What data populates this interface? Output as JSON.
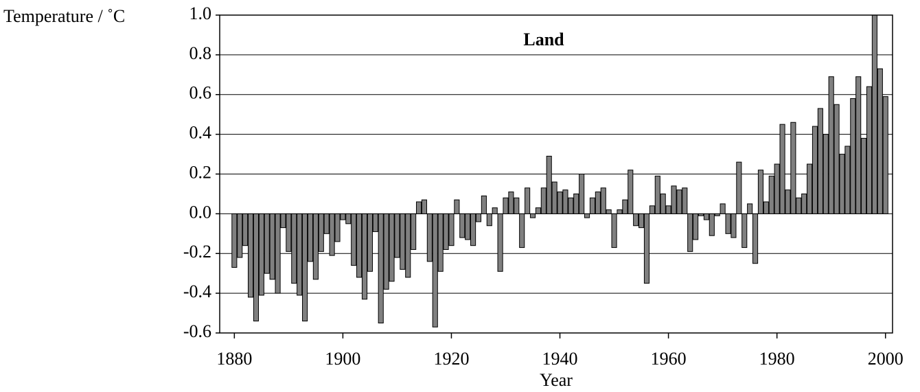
{
  "chart_data": {
    "type": "bar",
    "title": "Land",
    "y_label": "Temperature / ˚C",
    "x_label": "Year",
    "x": [
      1880,
      1881,
      1882,
      1883,
      1884,
      1885,
      1886,
      1887,
      1888,
      1889,
      1890,
      1891,
      1892,
      1893,
      1894,
      1895,
      1896,
      1897,
      1898,
      1899,
      1900,
      1901,
      1902,
      1903,
      1904,
      1905,
      1906,
      1907,
      1908,
      1909,
      1910,
      1911,
      1912,
      1913,
      1914,
      1915,
      1916,
      1917,
      1918,
      1919,
      1920,
      1921,
      1922,
      1923,
      1924,
      1925,
      1926,
      1927,
      1928,
      1929,
      1930,
      1931,
      1932,
      1933,
      1934,
      1935,
      1936,
      1937,
      1938,
      1939,
      1940,
      1941,
      1942,
      1943,
      1944,
      1945,
      1946,
      1947,
      1948,
      1949,
      1950,
      1951,
      1952,
      1953,
      1954,
      1955,
      1956,
      1957,
      1958,
      1959,
      1960,
      1961,
      1962,
      1963,
      1964,
      1965,
      1966,
      1967,
      1968,
      1969,
      1970,
      1971,
      1972,
      1973,
      1974,
      1975,
      1976,
      1977,
      1978,
      1979,
      1980,
      1981,
      1982,
      1983,
      1984,
      1985,
      1986,
      1987,
      1988,
      1989,
      1990,
      1991,
      1992,
      1993,
      1994,
      1995,
      1996,
      1997,
      1998,
      1999,
      2000
    ],
    "values": [
      -0.27,
      -0.22,
      -0.16,
      -0.42,
      -0.54,
      -0.41,
      -0.3,
      -0.33,
      -0.4,
      -0.07,
      -0.19,
      -0.35,
      -0.41,
      -0.54,
      -0.24,
      -0.33,
      -0.19,
      -0.1,
      -0.21,
      -0.14,
      -0.03,
      -0.05,
      -0.26,
      -0.32,
      -0.43,
      -0.29,
      -0.09,
      -0.55,
      -0.38,
      -0.34,
      -0.22,
      -0.28,
      -0.32,
      -0.18,
      0.06,
      0.07,
      -0.24,
      -0.57,
      -0.29,
      -0.18,
      -0.16,
      0.07,
      -0.12,
      -0.13,
      -0.16,
      -0.04,
      0.09,
      -0.06,
      0.03,
      -0.29,
      0.08,
      0.11,
      0.08,
      -0.17,
      0.13,
      -0.02,
      0.03,
      0.13,
      0.29,
      0.16,
      0.11,
      0.12,
      0.08,
      0.1,
      0.2,
      -0.02,
      0.08,
      0.11,
      0.13,
      0.02,
      -0.17,
      0.02,
      0.07,
      0.22,
      -0.06,
      -0.07,
      -0.35,
      0.04,
      0.19,
      0.1,
      0.04,
      0.14,
      0.12,
      0.13,
      -0.19,
      -0.13,
      -0.01,
      -0.03,
      -0.11,
      -0.01,
      0.05,
      -0.1,
      -0.12,
      0.26,
      -0.17,
      0.05,
      -0.25,
      0.22,
      0.06,
      0.19,
      0.25,
      0.45,
      0.12,
      0.46,
      0.08,
      0.1,
      0.25,
      0.44,
      0.53,
      0.4,
      0.69,
      0.55,
      0.3,
      0.34,
      0.58,
      0.69,
      0.38,
      0.64,
      1.0,
      0.73,
      0.59
    ],
    "color": "#808080",
    "xlim": [
      1877.3,
      2001.3
    ],
    "xticks": [
      1880,
      1900,
      1920,
      1940,
      1960,
      1980,
      2000
    ],
    "ylim": [
      -0.6,
      1.0
    ],
    "yticks": [
      {
        "value": 1.0,
        "label": "1.0"
      },
      0.8,
      0.6,
      0.4,
      0.2,
      {
        "value": 0,
        "label": "0.0"
      },
      -0.2,
      -0.4,
      -0.6
    ],
    "grid": true
  }
}
